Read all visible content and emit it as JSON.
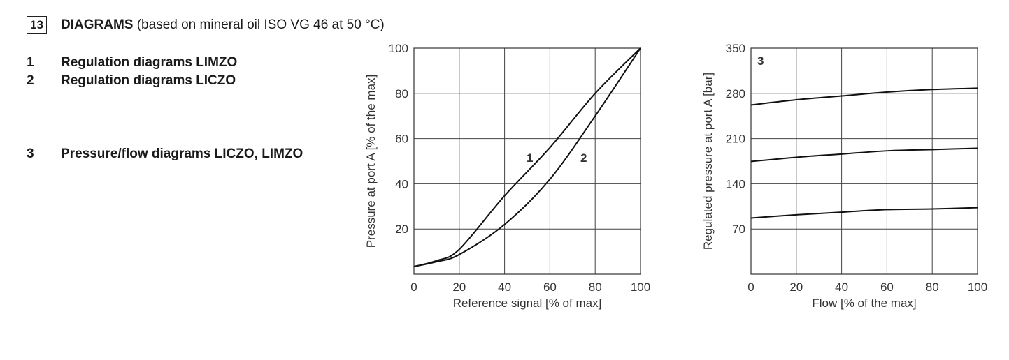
{
  "section": {
    "number": "13",
    "title": "DIAGRAMS",
    "subtitle": "(based on mineral oil ISO VG 46 at 50 °C)"
  },
  "items": [
    {
      "num": "1",
      "label": "Regulation diagrams LIMZO"
    },
    {
      "num": "2",
      "label": "Regulation diagrams LICZO"
    },
    {
      "num": "3",
      "label": "Pressure/flow diagrams LICZO, LIMZO"
    }
  ],
  "chart_data": [
    {
      "type": "line",
      "xlabel": "Reference signal [% of max]",
      "ylabel": "Pressure at port A [% of the max]",
      "xlim": [
        0,
        100
      ],
      "ylim": [
        0,
        100
      ],
      "xticks": [
        0,
        20,
        40,
        60,
        80,
        100
      ],
      "yticks": [
        20,
        40,
        60,
        80,
        100
      ],
      "grid": true,
      "x": [
        0,
        10,
        20,
        40,
        60,
        80,
        100
      ],
      "series": [
        {
          "name": "1",
          "values": [
            3.4,
            6,
            11,
            34.7,
            56,
            80,
            100
          ]
        },
        {
          "name": "2",
          "values": [
            3.4,
            5.5,
            8.7,
            22,
            42,
            70,
            100
          ]
        }
      ]
    },
    {
      "type": "line",
      "panel_label": "3",
      "xlabel": "Flow [% of the max]",
      "ylabel": "Regulated pressure at port A [bar]",
      "xlim": [
        0,
        100
      ],
      "ylim": [
        0,
        350
      ],
      "xticks": [
        0,
        20,
        40,
        60,
        80,
        100
      ],
      "yticks": [
        70,
        140,
        210,
        280,
        350
      ],
      "grid": true,
      "x": [
        0,
        20,
        40,
        60,
        80,
        100
      ],
      "series": [
        {
          "values": [
            262,
            270,
            276,
            282,
            286,
            288
          ]
        },
        {
          "values": [
            174.5,
            181,
            186,
            191,
            193,
            195
          ]
        },
        {
          "values": [
            87,
            92,
            96,
            100,
            101,
            103
          ]
        }
      ]
    }
  ]
}
